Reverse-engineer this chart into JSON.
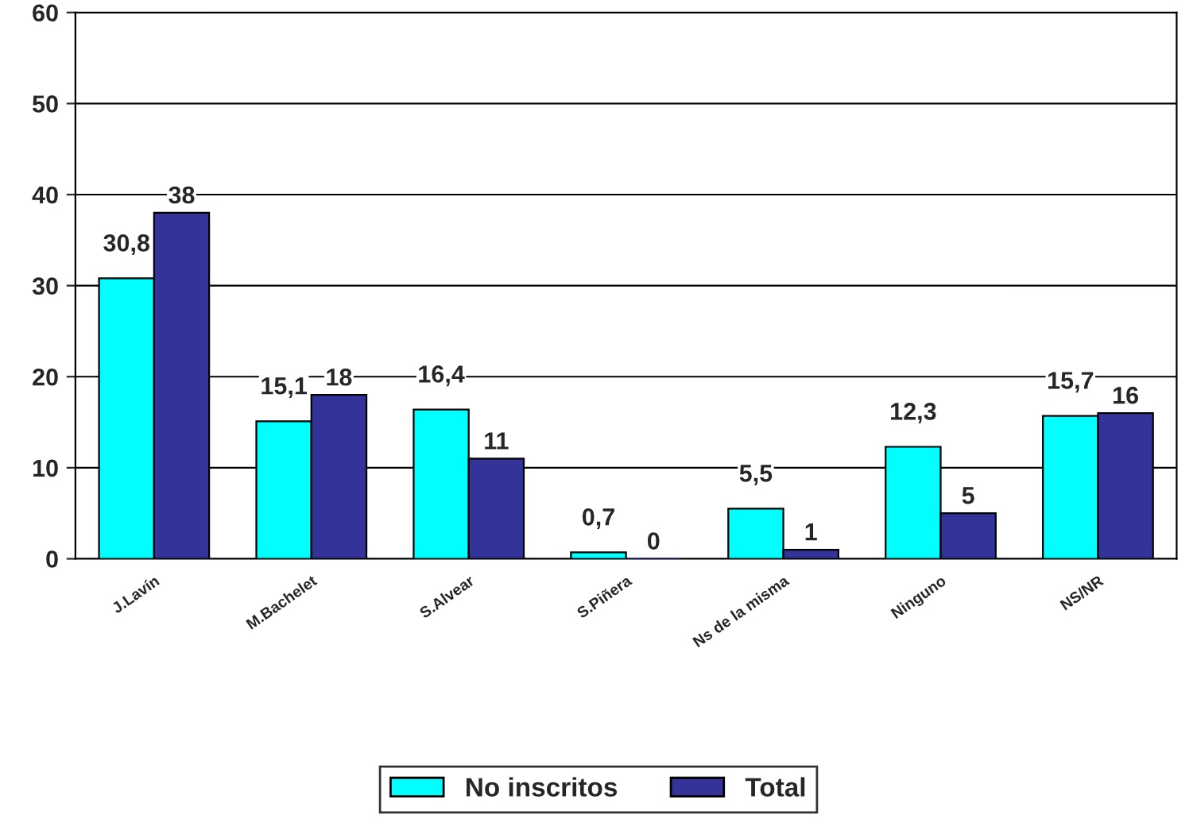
{
  "chart_data": {
    "type": "bar",
    "categories": [
      "J.Lavín",
      "M.Bachelet",
      "S.Alvear",
      "S.Piñera",
      "Ns de la misma",
      "Ninguno",
      "NS/NR"
    ],
    "series": [
      {
        "name": "No inscritos",
        "color": "#00ffff",
        "values": [
          30.8,
          15.1,
          16.4,
          0.7,
          5.5,
          12.3,
          15.7
        ],
        "value_labels": [
          "30,8",
          "15,1",
          "16,4",
          "0,7",
          "5,5",
          "12,3",
          "15,7"
        ]
      },
      {
        "name": "Total",
        "color": "#333399",
        "values": [
          38,
          18,
          11,
          0,
          1,
          5,
          16
        ],
        "value_labels": [
          "38",
          "18",
          "11",
          "0",
          "1",
          "5",
          "16"
        ]
      }
    ],
    "ylim": [
      0,
      60
    ],
    "yticks": [
      0,
      10,
      20,
      30,
      40,
      50,
      60
    ],
    "grid": "y",
    "legend": "bottom"
  }
}
